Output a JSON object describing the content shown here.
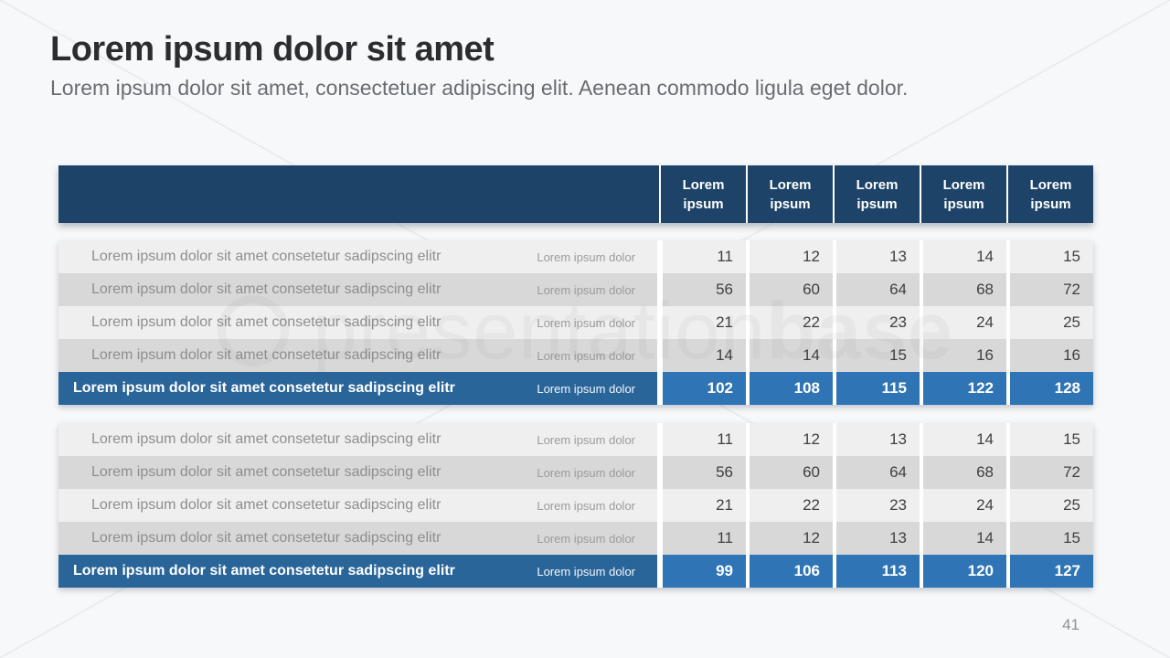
{
  "slide": {
    "title": "Lorem ipsum dolor sit amet",
    "subtitle": "Lorem ipsum dolor sit amet, consectetuer adipiscing elit. Aenean commodo ligula eget dolor.",
    "page_number": "41",
    "watermark_light": "presentation",
    "watermark_bold": "base"
  },
  "colors": {
    "background": "#f7f8fa",
    "header_navy": "#1d4468",
    "row_light": "#efefef",
    "row_dark": "#d8d8d8",
    "total_label_blue": "#2a6599",
    "total_cell_blue": "#2f75b5",
    "title_text": "#2b2d30",
    "subtitle_text": "#686d72",
    "row_label_text": "#8e8e8e",
    "value_text": "#3e4042"
  },
  "table": {
    "header": {
      "labels": [
        "Lorem ipsum",
        "Lorem ipsum",
        "Lorem ipsum",
        "Lorem ipsum",
        "Lorem ipsum"
      ]
    },
    "groups": [
      {
        "rows": [
          {
            "label": "Lorem ipsum dolor sit amet consetetur sadipscing elitr",
            "sublabel": "Lorem ipsum dolor",
            "values": [
              "11",
              "12",
              "13",
              "14",
              "15"
            ]
          },
          {
            "label": "Lorem ipsum dolor sit amet consetetur sadipscing elitr",
            "sublabel": "Lorem ipsum dolor",
            "values": [
              "56",
              "60",
              "64",
              "68",
              "72"
            ]
          },
          {
            "label": "Lorem ipsum dolor sit amet consetetur sadipscing elitr",
            "sublabel": "Lorem ipsum dolor",
            "values": [
              "21",
              "22",
              "23",
              "24",
              "25"
            ]
          },
          {
            "label": "Lorem ipsum dolor sit amet consetetur sadipscing elitr",
            "sublabel": "Lorem ipsum dolor",
            "values": [
              "14",
              "14",
              "15",
              "16",
              "16"
            ]
          }
        ],
        "total": {
          "label": "Lorem ipsum dolor sit amet consetetur sadipscing elitr",
          "sublabel": "Lorem ipsum dolor",
          "values": [
            "102",
            "108",
            "115",
            "122",
            "128"
          ]
        }
      },
      {
        "rows": [
          {
            "label": "Lorem ipsum dolor sit amet consetetur sadipscing elitr",
            "sublabel": "Lorem ipsum dolor",
            "values": [
              "11",
              "12",
              "13",
              "14",
              "15"
            ]
          },
          {
            "label": "Lorem ipsum dolor sit amet consetetur sadipscing elitr",
            "sublabel": "Lorem ipsum dolor",
            "values": [
              "56",
              "60",
              "64",
              "68",
              "72"
            ]
          },
          {
            "label": "Lorem ipsum dolor sit amet consetetur sadipscing elitr",
            "sublabel": "Lorem ipsum dolor",
            "values": [
              "21",
              "22",
              "23",
              "24",
              "25"
            ]
          },
          {
            "label": "Lorem ipsum dolor sit amet consetetur sadipscing elitr",
            "sublabel": "Lorem ipsum dolor",
            "values": [
              "11",
              "12",
              "13",
              "14",
              "15"
            ]
          }
        ],
        "total": {
          "label": "Lorem ipsum dolor sit amet consetetur sadipscing elitr",
          "sublabel": "Lorem ipsum dolor",
          "values": [
            "99",
            "106",
            "113",
            "120",
            "127"
          ]
        }
      }
    ]
  }
}
